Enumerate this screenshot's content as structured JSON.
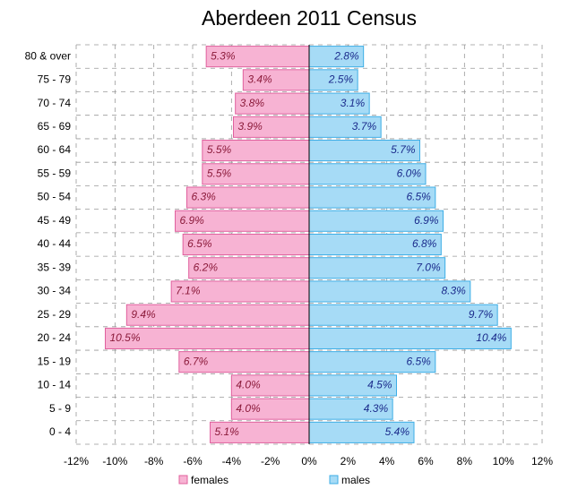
{
  "chart_data": {
    "type": "pyramid",
    "title": "Aberdeen 2011 Census",
    "categories": [
      "80 & over",
      "75 - 79",
      "70 - 74",
      "65 - 69",
      "60 - 64",
      "55 - 59",
      "50 - 54",
      "45 - 49",
      "40 - 44",
      "35 - 39",
      "30 - 34",
      "25 - 29",
      "20 - 24",
      "15 - 19",
      "10 - 14",
      "5 - 9",
      "0 - 4"
    ],
    "series": [
      {
        "name": "females",
        "color": "#f7b3d3",
        "values": [
          -5.3,
          -3.4,
          -3.8,
          -3.9,
          -5.5,
          -5.5,
          -6.3,
          -6.9,
          -6.5,
          -6.2,
          -7.1,
          -9.4,
          -10.5,
          -6.7,
          -4.0,
          -4.0,
          -5.1
        ],
        "value_labels": [
          "5.3%",
          "3.4%",
          "3.8%",
          "3.9%",
          "5.5%",
          "5.5%",
          "6.3%",
          "6.9%",
          "6.5%",
          "6.2%",
          "7.1%",
          "9.4%",
          "10.5%",
          "6.7%",
          "4.0%",
          "4.0%",
          "5.1%"
        ]
      },
      {
        "name": "males",
        "color": "#a6dbf6",
        "values": [
          2.8,
          2.5,
          3.1,
          3.7,
          5.7,
          6.0,
          6.5,
          6.9,
          6.8,
          7.0,
          8.3,
          9.7,
          10.4,
          6.5,
          4.5,
          4.3,
          5.4
        ],
        "value_labels": [
          "2.8%",
          "2.5%",
          "3.1%",
          "3.7%",
          "5.7%",
          "6.0%",
          "6.5%",
          "6.9%",
          "6.8%",
          "7.0%",
          "8.3%",
          "9.7%",
          "10.4%",
          "6.5%",
          "4.5%",
          "4.3%",
          "5.4%"
        ]
      }
    ],
    "xlim": [
      -12,
      12
    ],
    "xticks": [
      {
        "value": -12,
        "label": "-12%"
      },
      {
        "value": -10,
        "label": "-10%"
      },
      {
        "value": -8,
        "label": "-8%"
      },
      {
        "value": -6,
        "label": "-6%"
      },
      {
        "value": -4,
        "label": "-4%"
      },
      {
        "value": -2,
        "label": "-2%"
      },
      {
        "value": 0,
        "label": "0%"
      },
      {
        "value": 2,
        "label": "2%"
      },
      {
        "value": 4,
        "label": "4%"
      },
      {
        "value": 6,
        "label": "6%"
      },
      {
        "value": 8,
        "label": "8%"
      },
      {
        "value": 10,
        "label": "10%"
      },
      {
        "value": 12,
        "label": "12%"
      }
    ],
    "grid": true
  }
}
